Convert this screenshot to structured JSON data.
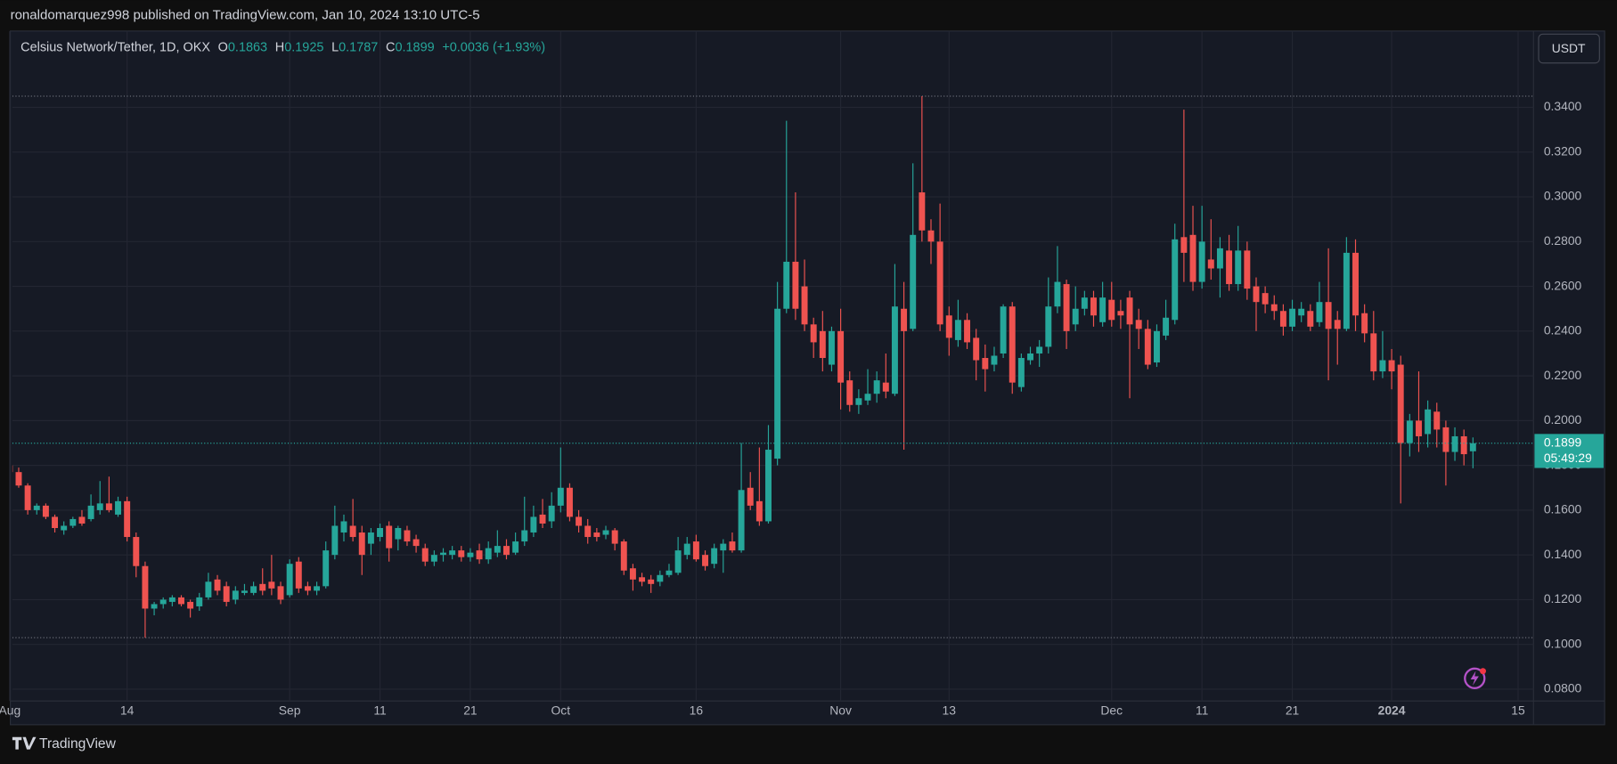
{
  "header": {
    "publisher": "ronaldomarquez998 published on TradingView.com, Jan 10, 2024 13:10 UTC-5",
    "footer_logo": "TradingView"
  },
  "chart_data": {
    "type": "candlestick",
    "title": "Celsius Network/Tether, 1D, OKX",
    "ohlc_labels": [
      "O",
      "H",
      "L",
      "C"
    ],
    "change": "+0.0036 (+1.93%)",
    "currency": "USDT",
    "countdown": "05:49:29",
    "up_color": "#26a69a",
    "down_color": "#ef5350",
    "grid": true,
    "ylim": [
      0.0747,
      0.3741
    ],
    "yticks": [
      {
        "value": 0.08,
        "label": "0.0800"
      },
      {
        "value": 0.1,
        "label": "0.1000"
      },
      {
        "value": 0.12,
        "label": "0.1200"
      },
      {
        "value": 0.14,
        "label": "0.1400"
      },
      {
        "value": 0.16,
        "label": "0.1600"
      },
      {
        "value": 0.18,
        "label": "0.1800"
      },
      {
        "value": 0.2,
        "label": "0.2000"
      },
      {
        "value": 0.22,
        "label": "0.2200"
      },
      {
        "value": 0.24,
        "label": "0.2400"
      },
      {
        "value": 0.26,
        "label": "0.2600"
      },
      {
        "value": 0.28,
        "label": "0.2800"
      },
      {
        "value": 0.3,
        "label": "0.3000"
      },
      {
        "value": 0.32,
        "label": "0.3200"
      },
      {
        "value": 0.34,
        "label": "0.3400"
      }
    ],
    "xlim": [
      0.3,
      168.7
    ],
    "xticks": [
      {
        "value": 0,
        "label": "Aug"
      },
      {
        "value": 13,
        "label": "14"
      },
      {
        "value": 31,
        "label": "Sep"
      },
      {
        "value": 41,
        "label": "11"
      },
      {
        "value": 51,
        "label": "21"
      },
      {
        "value": 61,
        "label": "Oct"
      },
      {
        "value": 76,
        "label": "16"
      },
      {
        "value": 92,
        "label": "Nov"
      },
      {
        "value": 104,
        "label": "13"
      },
      {
        "value": 122,
        "label": "Dec"
      },
      {
        "value": 132,
        "label": "11"
      },
      {
        "value": 142,
        "label": "21"
      },
      {
        "value": 153,
        "label": "2024"
      },
      {
        "value": 167,
        "label": "15"
      }
    ],
    "candles": [
      {
        "open": 0.18,
        "high": 0.183,
        "low": 0.176,
        "close": 0.177
      },
      {
        "open": 0.177,
        "high": 0.179,
        "low": 0.17,
        "close": 0.171
      },
      {
        "open": 0.171,
        "high": 0.172,
        "low": 0.158,
        "close": 0.16
      },
      {
        "open": 0.16,
        "high": 0.163,
        "low": 0.158,
        "close": 0.162
      },
      {
        "open": 0.162,
        "high": 0.163,
        "low": 0.156,
        "close": 0.157
      },
      {
        "open": 0.157,
        "high": 0.158,
        "low": 0.15,
        "close": 0.152
      },
      {
        "open": 0.151,
        "high": 0.155,
        "low": 0.149,
        "close": 0.153
      },
      {
        "open": 0.153,
        "high": 0.157,
        "low": 0.152,
        "close": 0.156
      },
      {
        "open": 0.157,
        "high": 0.16,
        "low": 0.153,
        "close": 0.154
      },
      {
        "open": 0.156,
        "high": 0.167,
        "low": 0.155,
        "close": 0.162
      },
      {
        "open": 0.16,
        "high": 0.173,
        "low": 0.158,
        "close": 0.163
      },
      {
        "open": 0.163,
        "high": 0.175,
        "low": 0.159,
        "close": 0.16
      },
      {
        "open": 0.158,
        "high": 0.166,
        "low": 0.157,
        "close": 0.164
      },
      {
        "open": 0.164,
        "high": 0.166,
        "low": 0.146,
        "close": 0.148
      },
      {
        "open": 0.148,
        "high": 0.15,
        "low": 0.13,
        "close": 0.135
      },
      {
        "open": 0.135,
        "high": 0.137,
        "low": 0.103,
        "close": 0.116
      },
      {
        "open": 0.116,
        "high": 0.119,
        "low": 0.113,
        "close": 0.118
      },
      {
        "open": 0.118,
        "high": 0.121,
        "low": 0.116,
        "close": 0.12
      },
      {
        "open": 0.119,
        "high": 0.122,
        "low": 0.117,
        "close": 0.121
      },
      {
        "open": 0.121,
        "high": 0.122,
        "low": 0.117,
        "close": 0.118
      },
      {
        "open": 0.119,
        "high": 0.12,
        "low": 0.112,
        "close": 0.116
      },
      {
        "open": 0.117,
        "high": 0.123,
        "low": 0.115,
        "close": 0.121
      },
      {
        "open": 0.121,
        "high": 0.132,
        "low": 0.12,
        "close": 0.128
      },
      {
        "open": 0.129,
        "high": 0.131,
        "low": 0.122,
        "close": 0.124
      },
      {
        "open": 0.126,
        "high": 0.128,
        "low": 0.117,
        "close": 0.119
      },
      {
        "open": 0.12,
        "high": 0.126,
        "low": 0.118,
        "close": 0.124
      },
      {
        "open": 0.123,
        "high": 0.127,
        "low": 0.122,
        "close": 0.124
      },
      {
        "open": 0.123,
        "high": 0.128,
        "low": 0.122,
        "close": 0.126
      },
      {
        "open": 0.127,
        "high": 0.134,
        "low": 0.122,
        "close": 0.124
      },
      {
        "open": 0.128,
        "high": 0.14,
        "low": 0.122,
        "close": 0.125
      },
      {
        "open": 0.126,
        "high": 0.128,
        "low": 0.118,
        "close": 0.12
      },
      {
        "open": 0.122,
        "high": 0.138,
        "low": 0.121,
        "close": 0.136
      },
      {
        "open": 0.137,
        "high": 0.139,
        "low": 0.123,
        "close": 0.125
      },
      {
        "open": 0.126,
        "high": 0.128,
        "low": 0.122,
        "close": 0.124
      },
      {
        "open": 0.124,
        "high": 0.128,
        "low": 0.122,
        "close": 0.126
      },
      {
        "open": 0.126,
        "high": 0.146,
        "low": 0.125,
        "close": 0.142
      },
      {
        "open": 0.14,
        "high": 0.162,
        "low": 0.138,
        "close": 0.153
      },
      {
        "open": 0.15,
        "high": 0.158,
        "low": 0.146,
        "close": 0.155
      },
      {
        "open": 0.153,
        "high": 0.165,
        "low": 0.146,
        "close": 0.148
      },
      {
        "open": 0.15,
        "high": 0.153,
        "low": 0.131,
        "close": 0.14
      },
      {
        "open": 0.145,
        "high": 0.152,
        "low": 0.14,
        "close": 0.15
      },
      {
        "open": 0.148,
        "high": 0.154,
        "low": 0.146,
        "close": 0.152
      },
      {
        "open": 0.153,
        "high": 0.155,
        "low": 0.137,
        "close": 0.143
      },
      {
        "open": 0.147,
        "high": 0.153,
        "low": 0.142,
        "close": 0.152
      },
      {
        "open": 0.151,
        "high": 0.153,
        "low": 0.144,
        "close": 0.146
      },
      {
        "open": 0.147,
        "high": 0.149,
        "low": 0.141,
        "close": 0.144
      },
      {
        "open": 0.143,
        "high": 0.145,
        "low": 0.135,
        "close": 0.137
      },
      {
        "open": 0.137,
        "high": 0.142,
        "low": 0.135,
        "close": 0.14
      },
      {
        "open": 0.14,
        "high": 0.143,
        "low": 0.137,
        "close": 0.141
      },
      {
        "open": 0.14,
        "high": 0.144,
        "low": 0.138,
        "close": 0.142
      },
      {
        "open": 0.142,
        "high": 0.144,
        "low": 0.137,
        "close": 0.139
      },
      {
        "open": 0.139,
        "high": 0.143,
        "low": 0.137,
        "close": 0.141
      },
      {
        "open": 0.142,
        "high": 0.145,
        "low": 0.136,
        "close": 0.138
      },
      {
        "open": 0.138,
        "high": 0.146,
        "low": 0.136,
        "close": 0.143
      },
      {
        "open": 0.141,
        "high": 0.151,
        "low": 0.139,
        "close": 0.144
      },
      {
        "open": 0.144,
        "high": 0.147,
        "low": 0.138,
        "close": 0.14
      },
      {
        "open": 0.141,
        "high": 0.15,
        "low": 0.14,
        "close": 0.146
      },
      {
        "open": 0.146,
        "high": 0.166,
        "low": 0.144,
        "close": 0.151
      },
      {
        "open": 0.15,
        "high": 0.162,
        "low": 0.148,
        "close": 0.157
      },
      {
        "open": 0.158,
        "high": 0.165,
        "low": 0.152,
        "close": 0.154
      },
      {
        "open": 0.155,
        "high": 0.168,
        "low": 0.152,
        "close": 0.162
      },
      {
        "open": 0.162,
        "high": 0.188,
        "low": 0.159,
        "close": 0.17
      },
      {
        "open": 0.17,
        "high": 0.172,
        "low": 0.155,
        "close": 0.157
      },
      {
        "open": 0.157,
        "high": 0.16,
        "low": 0.15,
        "close": 0.153
      },
      {
        "open": 0.153,
        "high": 0.156,
        "low": 0.145,
        "close": 0.148
      },
      {
        "open": 0.15,
        "high": 0.152,
        "low": 0.146,
        "close": 0.148
      },
      {
        "open": 0.149,
        "high": 0.153,
        "low": 0.147,
        "close": 0.151
      },
      {
        "open": 0.151,
        "high": 0.152,
        "low": 0.142,
        "close": 0.145
      },
      {
        "open": 0.146,
        "high": 0.147,
        "low": 0.131,
        "close": 0.133
      },
      {
        "open": 0.134,
        "high": 0.136,
        "low": 0.124,
        "close": 0.129
      },
      {
        "open": 0.13,
        "high": 0.132,
        "low": 0.126,
        "close": 0.128
      },
      {
        "open": 0.129,
        "high": 0.131,
        "low": 0.123,
        "close": 0.127
      },
      {
        "open": 0.128,
        "high": 0.133,
        "low": 0.126,
        "close": 0.131
      },
      {
        "open": 0.131,
        "high": 0.136,
        "low": 0.13,
        "close": 0.133
      },
      {
        "open": 0.132,
        "high": 0.148,
        "low": 0.131,
        "close": 0.142
      },
      {
        "open": 0.14,
        "high": 0.148,
        "low": 0.138,
        "close": 0.145
      },
      {
        "open": 0.146,
        "high": 0.149,
        "low": 0.137,
        "close": 0.138
      },
      {
        "open": 0.14,
        "high": 0.142,
        "low": 0.133,
        "close": 0.135
      },
      {
        "open": 0.136,
        "high": 0.145,
        "low": 0.134,
        "close": 0.143
      },
      {
        "open": 0.142,
        "high": 0.147,
        "low": 0.132,
        "close": 0.145
      },
      {
        "open": 0.146,
        "high": 0.15,
        "low": 0.141,
        "close": 0.142
      },
      {
        "open": 0.142,
        "high": 0.19,
        "low": 0.141,
        "close": 0.169
      },
      {
        "open": 0.17,
        "high": 0.177,
        "low": 0.16,
        "close": 0.162
      },
      {
        "open": 0.164,
        "high": 0.188,
        "low": 0.153,
        "close": 0.155
      },
      {
        "open": 0.155,
        "high": 0.198,
        "low": 0.154,
        "close": 0.187
      },
      {
        "open": 0.183,
        "high": 0.262,
        "low": 0.18,
        "close": 0.25
      },
      {
        "open": 0.25,
        "high": 0.334,
        "low": 0.248,
        "close": 0.271
      },
      {
        "open": 0.271,
        "high": 0.302,
        "low": 0.245,
        "close": 0.25
      },
      {
        "open": 0.26,
        "high": 0.272,
        "low": 0.24,
        "close": 0.243
      },
      {
        "open": 0.243,
        "high": 0.246,
        "low": 0.228,
        "close": 0.235
      },
      {
        "open": 0.24,
        "high": 0.249,
        "low": 0.222,
        "close": 0.228
      },
      {
        "open": 0.225,
        "high": 0.242,
        "low": 0.222,
        "close": 0.24
      },
      {
        "open": 0.24,
        "high": 0.25,
        "low": 0.205,
        "close": 0.217
      },
      {
        "open": 0.218,
        "high": 0.222,
        "low": 0.204,
        "close": 0.207
      },
      {
        "open": 0.207,
        "high": 0.214,
        "low": 0.203,
        "close": 0.21
      },
      {
        "open": 0.209,
        "high": 0.223,
        "low": 0.207,
        "close": 0.212
      },
      {
        "open": 0.212,
        "high": 0.222,
        "low": 0.208,
        "close": 0.218
      },
      {
        "open": 0.217,
        "high": 0.23,
        "low": 0.21,
        "close": 0.213
      },
      {
        "open": 0.212,
        "high": 0.27,
        "low": 0.211,
        "close": 0.251
      },
      {
        "open": 0.25,
        "high": 0.262,
        "low": 0.187,
        "close": 0.24
      },
      {
        "open": 0.241,
        "high": 0.315,
        "low": 0.24,
        "close": 0.283
      },
      {
        "open": 0.302,
        "high": 0.345,
        "low": 0.28,
        "close": 0.285
      },
      {
        "open": 0.285,
        "high": 0.29,
        "low": 0.27,
        "close": 0.28
      },
      {
        "open": 0.28,
        "high": 0.297,
        "low": 0.24,
        "close": 0.243
      },
      {
        "open": 0.247,
        "high": 0.251,
        "low": 0.229,
        "close": 0.237
      },
      {
        "open": 0.236,
        "high": 0.254,
        "low": 0.233,
        "close": 0.245
      },
      {
        "open": 0.245,
        "high": 0.248,
        "low": 0.232,
        "close": 0.235
      },
      {
        "open": 0.237,
        "high": 0.241,
        "low": 0.218,
        "close": 0.227
      },
      {
        "open": 0.228,
        "high": 0.234,
        "low": 0.213,
        "close": 0.223
      },
      {
        "open": 0.225,
        "high": 0.233,
        "low": 0.222,
        "close": 0.229
      },
      {
        "open": 0.23,
        "high": 0.252,
        "low": 0.228,
        "close": 0.251
      },
      {
        "open": 0.251,
        "high": 0.253,
        "low": 0.212,
        "close": 0.217
      },
      {
        "open": 0.215,
        "high": 0.23,
        "low": 0.213,
        "close": 0.228
      },
      {
        "open": 0.227,
        "high": 0.233,
        "low": 0.225,
        "close": 0.23
      },
      {
        "open": 0.23,
        "high": 0.236,
        "low": 0.224,
        "close": 0.233
      },
      {
        "open": 0.233,
        "high": 0.264,
        "low": 0.23,
        "close": 0.251
      },
      {
        "open": 0.251,
        "high": 0.278,
        "low": 0.248,
        "close": 0.262
      },
      {
        "open": 0.261,
        "high": 0.263,
        "low": 0.232,
        "close": 0.24
      },
      {
        "open": 0.243,
        "high": 0.26,
        "low": 0.24,
        "close": 0.25
      },
      {
        "open": 0.25,
        "high": 0.258,
        "low": 0.247,
        "close": 0.255
      },
      {
        "open": 0.255,
        "high": 0.258,
        "low": 0.242,
        "close": 0.247
      },
      {
        "open": 0.244,
        "high": 0.262,
        "low": 0.242,
        "close": 0.255
      },
      {
        "open": 0.254,
        "high": 0.262,
        "low": 0.242,
        "close": 0.245
      },
      {
        "open": 0.249,
        "high": 0.254,
        "low": 0.241,
        "close": 0.247
      },
      {
        "open": 0.255,
        "high": 0.258,
        "low": 0.21,
        "close": 0.243
      },
      {
        "open": 0.245,
        "high": 0.25,
        "low": 0.232,
        "close": 0.241
      },
      {
        "open": 0.241,
        "high": 0.245,
        "low": 0.223,
        "close": 0.225
      },
      {
        "open": 0.226,
        "high": 0.243,
        "low": 0.224,
        "close": 0.24
      },
      {
        "open": 0.238,
        "high": 0.254,
        "low": 0.236,
        "close": 0.246
      },
      {
        "open": 0.245,
        "high": 0.288,
        "low": 0.243,
        "close": 0.281
      },
      {
        "open": 0.282,
        "high": 0.339,
        "low": 0.262,
        "close": 0.275
      },
      {
        "open": 0.283,
        "high": 0.296,
        "low": 0.258,
        "close": 0.262
      },
      {
        "open": 0.262,
        "high": 0.296,
        "low": 0.259,
        "close": 0.28
      },
      {
        "open": 0.272,
        "high": 0.29,
        "low": 0.263,
        "close": 0.268
      },
      {
        "open": 0.268,
        "high": 0.282,
        "low": 0.255,
        "close": 0.277
      },
      {
        "open": 0.276,
        "high": 0.283,
        "low": 0.258,
        "close": 0.261
      },
      {
        "open": 0.261,
        "high": 0.287,
        "low": 0.258,
        "close": 0.276
      },
      {
        "open": 0.276,
        "high": 0.28,
        "low": 0.254,
        "close": 0.259
      },
      {
        "open": 0.26,
        "high": 0.264,
        "low": 0.24,
        "close": 0.253
      },
      {
        "open": 0.257,
        "high": 0.26,
        "low": 0.248,
        "close": 0.252
      },
      {
        "open": 0.252,
        "high": 0.256,
        "low": 0.245,
        "close": 0.249
      },
      {
        "open": 0.249,
        "high": 0.252,
        "low": 0.238,
        "close": 0.242
      },
      {
        "open": 0.242,
        "high": 0.254,
        "low": 0.24,
        "close": 0.25
      },
      {
        "open": 0.247,
        "high": 0.253,
        "low": 0.244,
        "close": 0.25
      },
      {
        "open": 0.249,
        "high": 0.252,
        "low": 0.24,
        "close": 0.242
      },
      {
        "open": 0.244,
        "high": 0.262,
        "low": 0.242,
        "close": 0.253
      },
      {
        "open": 0.253,
        "high": 0.277,
        "low": 0.218,
        "close": 0.241
      },
      {
        "open": 0.245,
        "high": 0.249,
        "low": 0.225,
        "close": 0.241
      },
      {
        "open": 0.241,
        "high": 0.282,
        "low": 0.24,
        "close": 0.275
      },
      {
        "open": 0.275,
        "high": 0.281,
        "low": 0.24,
        "close": 0.247
      },
      {
        "open": 0.248,
        "high": 0.252,
        "low": 0.235,
        "close": 0.239
      },
      {
        "open": 0.239,
        "high": 0.249,
        "low": 0.218,
        "close": 0.222
      },
      {
        "open": 0.222,
        "high": 0.24,
        "low": 0.219,
        "close": 0.227
      },
      {
        "open": 0.227,
        "high": 0.232,
        "low": 0.214,
        "close": 0.222
      },
      {
        "open": 0.225,
        "high": 0.229,
        "low": 0.163,
        "close": 0.19
      },
      {
        "open": 0.19,
        "high": 0.203,
        "low": 0.184,
        "close": 0.2
      },
      {
        "open": 0.2,
        "high": 0.222,
        "low": 0.186,
        "close": 0.193
      },
      {
        "open": 0.194,
        "high": 0.209,
        "low": 0.188,
        "close": 0.205
      },
      {
        "open": 0.204,
        "high": 0.208,
        "low": 0.188,
        "close": 0.196
      },
      {
        "open": 0.197,
        "high": 0.2,
        "low": 0.171,
        "close": 0.186
      },
      {
        "open": 0.186,
        "high": 0.197,
        "low": 0.182,
        "close": 0.193
      },
      {
        "open": 0.193,
        "high": 0.196,
        "low": 0.18,
        "close": 0.185
      },
      {
        "open": 0.1863,
        "high": 0.1925,
        "low": 0.1787,
        "close": 0.1899
      }
    ]
  }
}
